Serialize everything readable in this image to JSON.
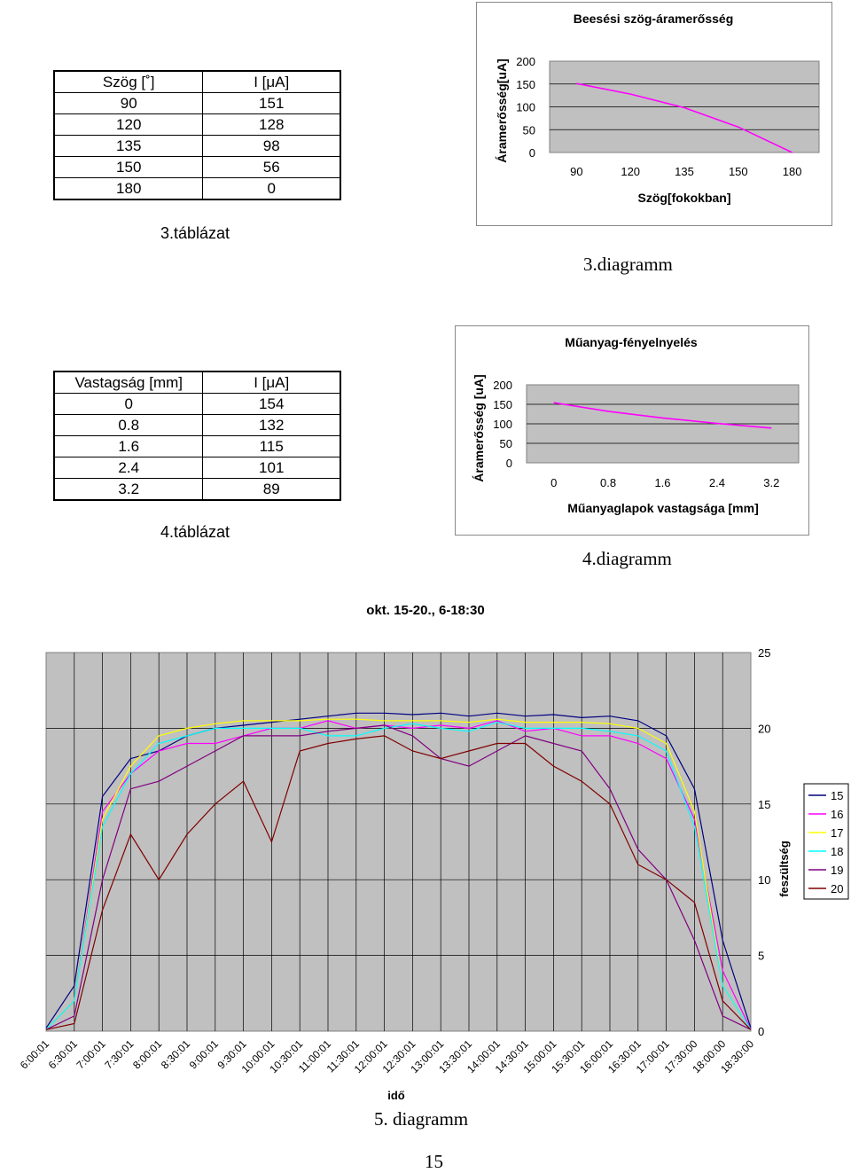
{
  "table3": {
    "headers": [
      "Szög [˚]",
      "I [μA]"
    ],
    "rows": [
      [
        "90",
        "151"
      ],
      [
        "120",
        "128"
      ],
      [
        "135",
        "98"
      ],
      [
        "150",
        "56"
      ],
      [
        "180",
        "0"
      ]
    ],
    "caption": "3.táblázat"
  },
  "table4": {
    "headers": [
      "Vastagság [mm]",
      "I [μA]"
    ],
    "rows": [
      [
        "0",
        "154"
      ],
      [
        "0.8",
        "132"
      ],
      [
        "1.6",
        "115"
      ],
      [
        "2.4",
        "101"
      ],
      [
        "3.2",
        "89"
      ]
    ],
    "caption": "4.táblázat"
  },
  "diagram3_caption": "3.diagramm",
  "diagram4_caption": "4.diagramm",
  "diagram5_caption": "5. diagramm",
  "page_number": "15",
  "chart_data": [
    {
      "type": "line",
      "title": "Beesési szög-áramerősség",
      "xlabel": "Szög[fokokban]",
      "ylabel": "Áramerősség[uA]",
      "categories": [
        "90",
        "120",
        "135",
        "150",
        "180"
      ],
      "series": [
        {
          "values": [
            151,
            128,
            98,
            56,
            0
          ],
          "color": "#ff00ff"
        }
      ],
      "yticks": [
        "0",
        "50",
        "100",
        "150",
        "200"
      ],
      "ylim": [
        0,
        200
      ],
      "grid": true,
      "plot_bg": "#c0c0c0"
    },
    {
      "type": "line",
      "title": "Műanyag-fényelnyelés",
      "xlabel": "Műanyaglapok vastagsága [mm]",
      "ylabel": "Áramerősség [uA]",
      "categories": [
        "0",
        "0.8",
        "1.6",
        "2.4",
        "3.2"
      ],
      "series": [
        {
          "values": [
            154,
            132,
            115,
            101,
            89
          ],
          "color": "#ff00ff"
        }
      ],
      "yticks": [
        "0",
        "50",
        "100",
        "150",
        "200"
      ],
      "ylim": [
        0,
        200
      ],
      "grid": true,
      "plot_bg": "#c0c0c0"
    },
    {
      "type": "line",
      "title": "okt. 15-20., 6-18:30",
      "xlabel": "idő",
      "ylabel": "feszültség",
      "categories": [
        "6:00:01",
        "6:30:01",
        "7:00:01",
        "7:30:01",
        "8:00:01",
        "8:30:01",
        "9:00:01",
        "9:30:01",
        "10:00:01",
        "10:30:01",
        "11:00:01",
        "11:30:01",
        "12:00:01",
        "12:30:01",
        "13:00:01",
        "13:30:01",
        "14:00:01",
        "14:30:01",
        "15:00:01",
        "15:30:01",
        "16:00:01",
        "16:30:01",
        "17:00:01",
        "17:30:00",
        "18:00:00",
        "18:30:00"
      ],
      "yticks": [
        "0",
        "5",
        "10",
        "15",
        "20",
        "25"
      ],
      "ylim": [
        0,
        25
      ],
      "legend_position": "right",
      "grid": true,
      "plot_bg": "#c0c0c0",
      "series": [
        {
          "name": "15",
          "color": "#000080",
          "values": [
            0.2,
            3,
            15.5,
            18,
            18.5,
            19.5,
            20,
            20.2,
            20.4,
            20.6,
            20.8,
            21,
            21,
            20.9,
            21,
            20.8,
            21,
            20.8,
            20.9,
            20.7,
            20.8,
            20.5,
            19.5,
            16,
            6,
            0.2
          ]
        },
        {
          "name": "16",
          "color": "#ff00ff",
          "values": [
            0.1,
            2,
            14.5,
            17,
            18.5,
            19,
            19,
            19.5,
            20,
            20,
            20.5,
            20,
            20.2,
            20,
            20.2,
            20,
            20.5,
            19.8,
            20,
            19.5,
            19.5,
            19,
            18,
            14,
            4,
            0.1
          ]
        },
        {
          "name": "17",
          "color": "#ffff00",
          "values": [
            0.1,
            2,
            14,
            17.5,
            19.5,
            20,
            20.3,
            20.5,
            20.5,
            20.5,
            20.6,
            20.6,
            20.5,
            20.5,
            20.5,
            20.4,
            20.6,
            20.4,
            20.4,
            20.4,
            20.3,
            20,
            19,
            14.5,
            3,
            0.1
          ]
        },
        {
          "name": "18",
          "color": "#00ffff",
          "values": [
            0.1,
            2,
            13.5,
            17,
            19,
            19.5,
            20,
            20,
            20,
            20,
            19.5,
            19.5,
            20,
            20.3,
            20,
            19.8,
            20.4,
            20,
            20,
            20,
            19.8,
            19.5,
            18.5,
            13.5,
            3,
            0.1
          ]
        },
        {
          "name": "19",
          "color": "#800080",
          "values": [
            0.1,
            1,
            10,
            16,
            16.5,
            17.5,
            18.5,
            19.5,
            19.5,
            19.5,
            19.8,
            20,
            20.2,
            19.5,
            18,
            17.5,
            18.5,
            19.5,
            19,
            18.5,
            16,
            12,
            10,
            6,
            1,
            0.1
          ]
        },
        {
          "name": "20",
          "color": "#800000",
          "values": [
            0.1,
            0.5,
            8,
            13,
            10,
            13,
            15,
            16.5,
            12.5,
            18.5,
            19,
            19.3,
            19.5,
            18.5,
            18,
            18.5,
            19,
            19,
            17.5,
            16.5,
            15,
            11,
            10,
            8.5,
            2,
            0.1
          ]
        }
      ]
    }
  ]
}
